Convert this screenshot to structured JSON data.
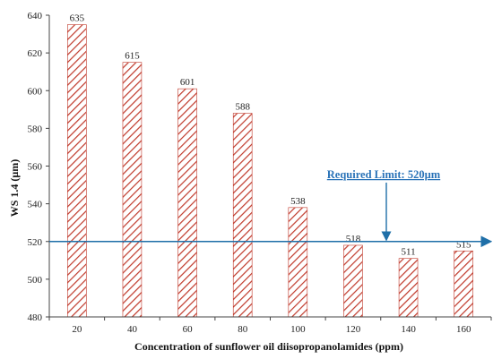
{
  "chart_data": {
    "type": "bar",
    "title": "",
    "xlabel": "Concentration of sunflower oil diisopropanolamides (ppm)",
    "ylabel": "WS 1.4 (µm)",
    "categories": [
      "20",
      "40",
      "60",
      "80",
      "100",
      "120",
      "140",
      "160"
    ],
    "values": [
      635,
      615,
      601,
      588,
      538,
      518,
      511,
      515
    ],
    "data_labels": [
      "635",
      "615",
      "601",
      "588",
      "538",
      "518",
      "511",
      "515"
    ],
    "ylim": [
      480,
      640
    ],
    "yticks": [
      "480",
      "500",
      "520",
      "540",
      "560",
      "580",
      "600",
      "620",
      "640"
    ],
    "grid": false,
    "legend": "none",
    "bar_style": "diagonal-hatch",
    "reference_line": {
      "value": 520,
      "label": "Required Limit: 520µm",
      "arrow_points_to_line": true
    },
    "colors": {
      "bar_hatch": "#c0392b",
      "bar_fill": "#ffffff",
      "reference_line": "#1f6fa8",
      "limit_label": "#2a73b8",
      "axis": "#444444"
    }
  }
}
